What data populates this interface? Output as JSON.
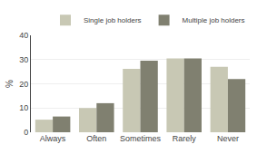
{
  "chart_data": {
    "type": "bar",
    "categories": [
      "Always",
      "Often",
      "Sometimes",
      "Rarely",
      "Never"
    ],
    "series": [
      {
        "name": "Single job holders",
        "color": "#c8c8b4",
        "values": [
          5.2,
          10.0,
          26.2,
          30.5,
          27.0
        ]
      },
      {
        "name": "Multiple job holders",
        "color": "#808070",
        "values": [
          6.5,
          12.0,
          29.5,
          30.5,
          22.0
        ]
      }
    ],
    "ylabel": "%",
    "ylim": [
      0,
      40
    ],
    "yticks": [
      0,
      10,
      20,
      30,
      40
    ],
    "grid": true,
    "legend": "upper right"
  }
}
